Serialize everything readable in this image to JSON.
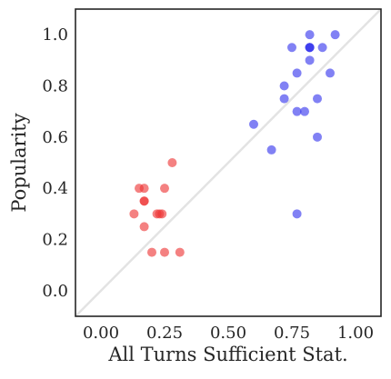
{
  "chart_data": {
    "type": "scatter",
    "xlabel": "All Turns Sufficient Stat.",
    "ylabel": "Popularity",
    "xlim": [
      -0.1,
      1.1
    ],
    "ylim": [
      -0.1,
      1.1
    ],
    "x_ticks": [
      0.0,
      0.25,
      0.5,
      0.75,
      1.0
    ],
    "x_tick_labels": [
      "0.00",
      "0.25",
      "0.50",
      "0.75",
      "1.00"
    ],
    "y_ticks": [
      0.0,
      0.2,
      0.4,
      0.6,
      0.8,
      1.0
    ],
    "y_tick_labels": [
      "0.0",
      "0.2",
      "0.4",
      "0.6",
      "0.8",
      "1.0"
    ],
    "grid": false,
    "reference_line": {
      "from": [
        -0.1,
        -0.1
      ],
      "to": [
        1.1,
        1.1
      ],
      "color": "#e3e3e3"
    },
    "series": [
      {
        "color": "#ee3333",
        "points": [
          [
            0.15,
            0.4
          ],
          [
            0.17,
            0.4
          ],
          [
            0.17,
            0.35
          ],
          [
            0.17,
            0.35
          ],
          [
            0.13,
            0.3
          ],
          [
            0.17,
            0.25
          ],
          [
            0.2,
            0.15
          ],
          [
            0.22,
            0.3
          ],
          [
            0.23,
            0.3
          ],
          [
            0.24,
            0.3
          ],
          [
            0.25,
            0.4
          ],
          [
            0.25,
            0.15
          ],
          [
            0.28,
            0.5
          ],
          [
            0.31,
            0.15
          ]
        ]
      },
      {
        "color": "#3333ee",
        "points": [
          [
            0.82,
            1.0
          ],
          [
            0.92,
            1.0
          ],
          [
            0.75,
            0.95
          ],
          [
            0.82,
            0.95
          ],
          [
            0.82,
            0.95
          ],
          [
            0.82,
            0.95
          ],
          [
            0.87,
            0.95
          ],
          [
            0.82,
            0.9
          ],
          [
            0.77,
            0.85
          ],
          [
            0.9,
            0.85
          ],
          [
            0.72,
            0.8
          ],
          [
            0.72,
            0.75
          ],
          [
            0.85,
            0.75
          ],
          [
            0.77,
            0.7
          ],
          [
            0.8,
            0.7
          ],
          [
            0.6,
            0.65
          ],
          [
            0.85,
            0.6
          ],
          [
            0.67,
            0.55
          ],
          [
            0.77,
            0.3
          ]
        ]
      }
    ]
  }
}
